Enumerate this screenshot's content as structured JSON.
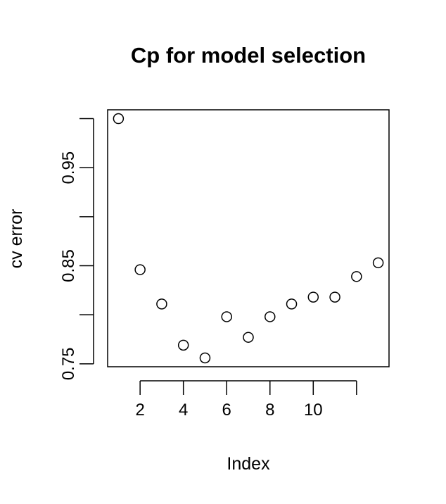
{
  "chart_data": {
    "type": "scatter",
    "title": "Cp for model selection",
    "xlabel": "Index",
    "ylabel": "cv error",
    "x": [
      1,
      2,
      3,
      4,
      5,
      6,
      7,
      8,
      9,
      10,
      11,
      12,
      13
    ],
    "y": [
      1.0,
      0.846,
      0.811,
      0.769,
      0.756,
      0.798,
      0.777,
      0.798,
      0.811,
      0.818,
      0.818,
      0.839,
      0.853
    ],
    "xlim": [
      0.5,
      13.5
    ],
    "ylim": [
      0.747,
      1.009
    ],
    "x_ticks": [
      2,
      4,
      6,
      8,
      10,
      12
    ],
    "x_tick_labels": [
      "2",
      "4",
      "6",
      "8",
      "10",
      ""
    ],
    "y_ticks": [
      0.75,
      0.8,
      0.85,
      0.9,
      0.95,
      1.0
    ],
    "y_tick_labels": [
      "0.75",
      "",
      "0.85",
      "",
      "0.95",
      ""
    ],
    "grid": false,
    "marker": "open-circle"
  }
}
